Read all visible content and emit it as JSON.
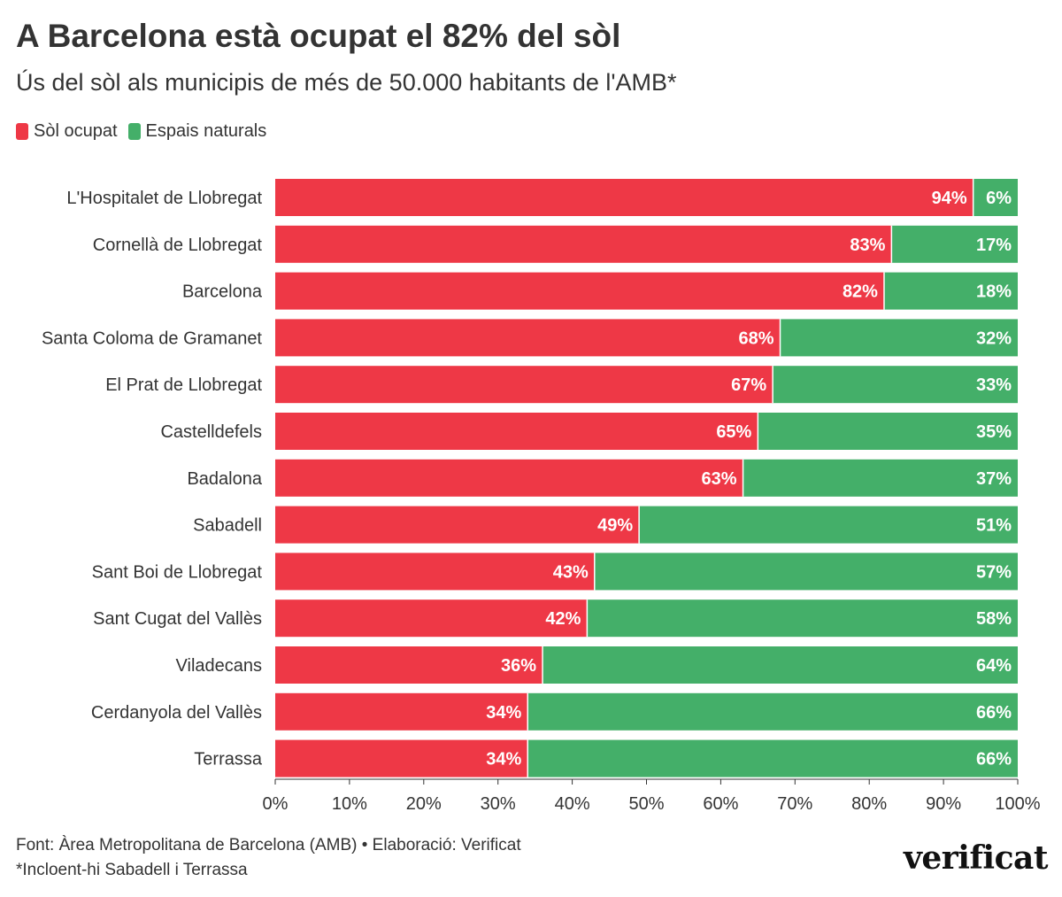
{
  "title": "A Barcelona està ocupat el 82% del sòl",
  "subtitle": "Ús del sòl als municipis de més de 50.000 habitants de l'AMB*",
  "footer": {
    "source": "Font: Àrea Metropolitana de Barcelona (AMB) • Elaboració: Verificat",
    "note": "*Incloent-hi Sabadell i Terrassa"
  },
  "logo": "verificat",
  "colors": {
    "occupied": "#EE3846",
    "natural": "#44AF69",
    "text": "#333333",
    "axis": "#333333"
  },
  "chart_data": {
    "type": "bar",
    "orientation": "horizontal",
    "stacked": true,
    "categories": [
      "L'Hospitalet de Llobregat",
      "Cornellà de Llobregat",
      "Barcelona",
      "Santa Coloma de Gramanet",
      "El Prat de Llobregat",
      "Castelldefels",
      "Badalona",
      "Sabadell",
      "Sant Boi de Llobregat",
      "Sant Cugat del Vallès",
      "Viladecans",
      "Cerdanyola del Vallès",
      "Terrassa"
    ],
    "series": [
      {
        "name": "Sòl ocupat",
        "color": "#EE3846",
        "values": [
          94,
          83,
          82,
          68,
          67,
          65,
          63,
          49,
          43,
          42,
          36,
          34,
          34
        ]
      },
      {
        "name": "Espais naturals",
        "color": "#44AF69",
        "values": [
          6,
          17,
          18,
          32,
          33,
          35,
          37,
          51,
          57,
          58,
          64,
          66,
          66
        ]
      }
    ],
    "xlim": [
      0,
      100
    ],
    "xticks": [
      "0%",
      "10%",
      "20%",
      "30%",
      "40%",
      "50%",
      "60%",
      "70%",
      "80%",
      "90%",
      "100%"
    ],
    "value_suffix": "%",
    "legend_position": "top-left"
  }
}
